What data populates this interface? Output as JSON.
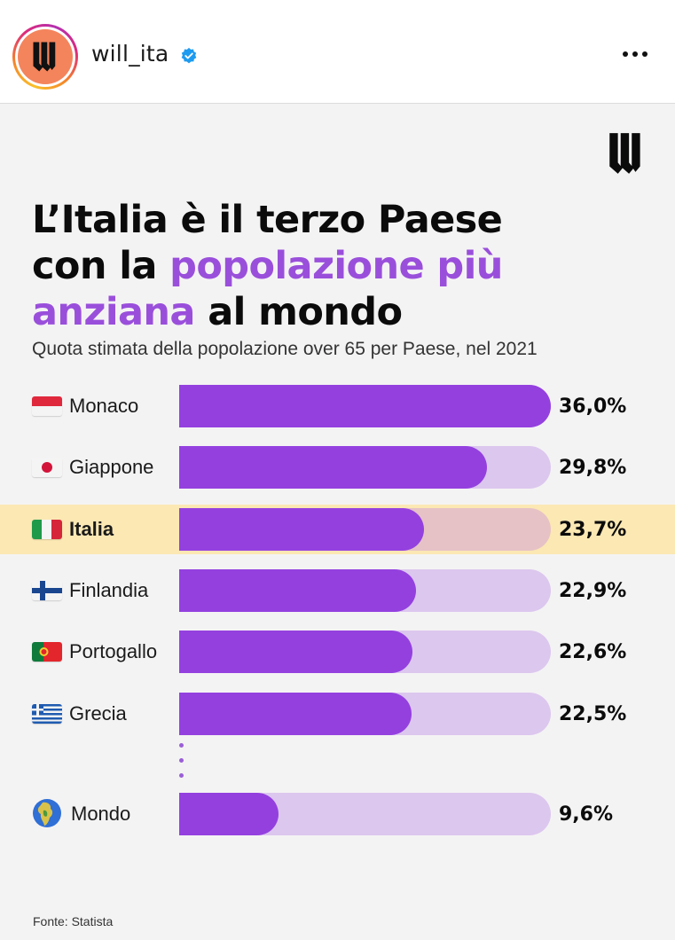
{
  "post": {
    "username": "will_ita",
    "verified": true,
    "more_icon": "more-horizontal-icon",
    "avatar_icon": "will-logo-icon"
  },
  "colors": {
    "accent_purple": "#9440df",
    "track_purple": "#dcc7ee",
    "highlight_bg": "#fbe8b3",
    "title_accent": "#9a4fdb",
    "avatar_bg": "#f4845c",
    "verified_blue": "#1d9bf0"
  },
  "infographic": {
    "title_part1": "L’Italia è il terzo Paese",
    "title_part2a": "con la ",
    "title_part2b": "popolazione più",
    "title_part3a": "anziana",
    "title_part3b": " al mondo",
    "subtitle": "Quota stimata della popolazione over 65 per Paese, nel 2021",
    "source": "Fonte: Statista"
  },
  "chart_data": {
    "type": "bar",
    "orientation": "horizontal",
    "title": "L’Italia è il terzo Paese con la popolazione più anziana al mondo",
    "subtitle": "Quota stimata della popolazione over 65 per Paese, nel 2021",
    "xlabel": "",
    "ylabel": "",
    "unit": "%",
    "xlim": [
      0,
      36.0
    ],
    "categories": [
      "Monaco",
      "Giappone",
      "Italia",
      "Finlandia",
      "Portogallo",
      "Grecia",
      "Mondo"
    ],
    "values": [
      36.0,
      29.8,
      23.7,
      22.9,
      22.6,
      22.5,
      9.6
    ],
    "value_labels": [
      "36,0%",
      "29,8%",
      "23,7%",
      "22,9%",
      "22,6%",
      "22,5%",
      "9,6%"
    ],
    "flags": [
      "flag-monaco-icon",
      "flag-japan-icon",
      "flag-italy-icon",
      "flag-finland-icon",
      "flag-portugal-icon",
      "flag-greece-icon",
      "globe-icon"
    ],
    "highlighted": "Italia",
    "gap_before": "Mondo",
    "grid": false,
    "legend": "none"
  }
}
